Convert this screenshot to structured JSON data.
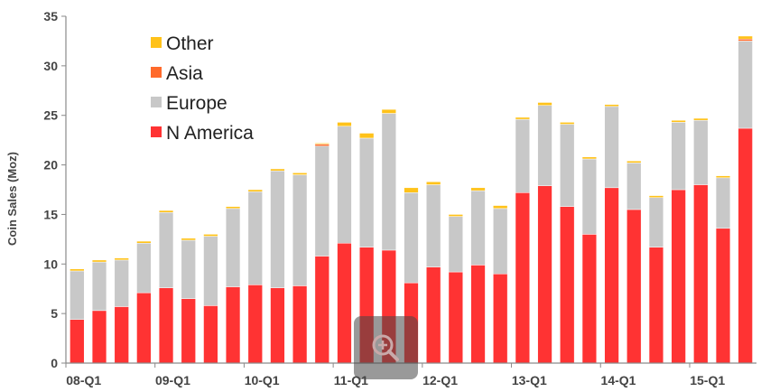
{
  "chart_data": {
    "type": "bar",
    "stacked": true,
    "ylabel": "Coin Sales (Moz)",
    "ylim": [
      0,
      35
    ],
    "yticks": [
      0,
      5,
      10,
      15,
      20,
      25,
      30,
      35
    ],
    "x_tick_labels": [
      {
        "label": "08-Q1",
        "index": 0
      },
      {
        "label": "09-Q1",
        "index": 4
      },
      {
        "label": "10-Q1",
        "index": 8
      },
      {
        "label": "11-Q1",
        "index": 12
      },
      {
        "label": "12-Q1",
        "index": 16
      },
      {
        "label": "13-Q1",
        "index": 20
      },
      {
        "label": "14-Q1",
        "index": 24
      },
      {
        "label": "15-Q1",
        "index": 28
      }
    ],
    "categories": [
      "08-Q1",
      "08-Q2",
      "08-Q3",
      "08-Q4",
      "09-Q1",
      "09-Q2",
      "09-Q3",
      "09-Q4",
      "10-Q1",
      "10-Q2",
      "10-Q3",
      "10-Q4",
      "11-Q1",
      "11-Q2",
      "11-Q3",
      "11-Q4",
      "12-Q1",
      "12-Q2",
      "12-Q3",
      "12-Q4",
      "13-Q1",
      "13-Q2",
      "13-Q3",
      "13-Q4",
      "14-Q1",
      "14-Q2",
      "14-Q3",
      "14-Q4",
      "15-Q1",
      "15-Q2",
      "15-Q3"
    ],
    "legend_position": "top-left",
    "grid": false,
    "series": [
      {
        "name": "N America",
        "color": "#ff3333",
        "values": [
          4.4,
          5.3,
          5.7,
          7.1,
          7.6,
          6.5,
          5.8,
          7.7,
          7.9,
          7.6,
          7.8,
          10.8,
          12.1,
          11.7,
          11.4,
          8.1,
          9.7,
          9.2,
          9.9,
          9.0,
          17.2,
          17.9,
          15.8,
          13.0,
          17.7,
          15.5,
          11.7,
          17.5,
          18.0,
          13.6,
          23.7
        ]
      },
      {
        "name": "Europe",
        "color": "#c8c8c8",
        "values": [
          4.9,
          4.9,
          4.7,
          5.0,
          7.6,
          5.9,
          7.0,
          7.9,
          9.4,
          11.8,
          11.2,
          11.1,
          11.8,
          11.0,
          13.8,
          9.1,
          8.3,
          5.6,
          7.5,
          6.6,
          7.4,
          8.1,
          8.3,
          7.6,
          8.2,
          4.7,
          5.0,
          6.8,
          6.5,
          5.1,
          8.8
        ]
      },
      {
        "name": "Asia",
        "color": "#ff6a2b",
        "values": [
          0,
          0,
          0,
          0,
          0,
          0,
          0,
          0,
          0,
          0,
          0,
          0.2,
          0,
          0,
          0,
          0,
          0,
          0,
          0,
          0,
          0,
          0,
          0,
          0,
          0,
          0,
          0,
          0,
          0,
          0,
          0.2
        ]
      },
      {
        "name": "Other",
        "color": "#ffc21a",
        "values": [
          0.2,
          0.2,
          0.2,
          0.2,
          0.2,
          0.2,
          0.2,
          0.2,
          0.2,
          0.2,
          0.2,
          0.1,
          0.4,
          0.5,
          0.4,
          0.5,
          0.3,
          0.2,
          0.3,
          0.3,
          0.2,
          0.3,
          0.2,
          0.2,
          0.2,
          0.2,
          0.2,
          0.2,
          0.2,
          0.2,
          0.3
        ]
      }
    ],
    "legend_order": [
      "Other",
      "Asia",
      "Europe",
      "N America"
    ]
  },
  "ui": {
    "zoom_icon": "zoom-in-icon",
    "overlay_color": "#464646"
  }
}
